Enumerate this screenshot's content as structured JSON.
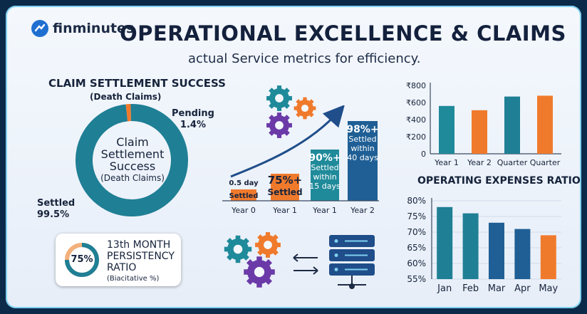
{
  "brand": {
    "name": "finminutes"
  },
  "header": {
    "title": "OPERATIONAL EXCELLENCE & CLAIMS",
    "subtitle": "actual Service metrics for efficiency."
  },
  "claims_section": {
    "title": "CLAIM SETTLEMENT SUCCESS",
    "subtitle": "(Death Claims)",
    "center_line1": "Claim",
    "center_line2": "Settlement",
    "center_line3": "Success",
    "center_line4": "(Death Claims)"
  },
  "persistency": {
    "value_label": "75%",
    "line1": "13th MONTH",
    "line2": "PERSISTENCY",
    "line3": "RATIO",
    "line4": "(Biacitative %)"
  },
  "colors": {
    "teal": "#1f8a9a",
    "navy": "#1f4e8a",
    "orange": "#f07a2c",
    "bg": "#eef3fa"
  },
  "icons": [
    "gear-icon",
    "server-icon",
    "arrow-icon"
  ],
  "chart_data": [
    {
      "type": "pie",
      "title": "CLAIM SETTLEMENT SUCCESS",
      "slices": [
        {
          "name": "Settled",
          "value": 99.5,
          "label": "99.5%"
        },
        {
          "name": "Pending",
          "value": 1.4,
          "label": "1.4%"
        }
      ]
    },
    {
      "type": "bar",
      "categories": [
        "Year 0",
        "Year 1",
        "Year 1",
        "Year 2"
      ],
      "values": [
        0.5,
        75,
        90,
        98
      ],
      "labels": [
        [
          "0.5 day",
          "Settled"
        ],
        [
          "75%+",
          "Settled"
        ],
        [
          "90%+",
          "Settled",
          "within",
          "15 days"
        ],
        [
          "98%+",
          "Settled",
          "within",
          "40 days"
        ]
      ]
    },
    {
      "type": "bar",
      "categories": [
        "Year 1",
        "Year 2",
        "Quarter",
        "Quarter"
      ],
      "values": [
        560,
        510,
        670,
        680
      ],
      "yticks": [
        "₹800",
        "₹600",
        "₹400",
        "₹200",
        "0"
      ],
      "ylim": [
        0,
        800
      ]
    },
    {
      "type": "bar",
      "title": "OPERATING EXPENSES RATIO",
      "categories": [
        "Jan",
        "Feb",
        "Mar",
        "Apr",
        "May"
      ],
      "values": [
        78,
        76,
        73,
        71,
        69
      ],
      "yticks": [
        "80%",
        "75%",
        "70%",
        "65%",
        "60%",
        "55%"
      ],
      "ylim": [
        55,
        80
      ]
    },
    {
      "type": "pie",
      "title": "13th MONTH PERSISTENCY RATIO",
      "slices": [
        {
          "name": "Persistency",
          "value": 75,
          "label": "75%"
        }
      ]
    }
  ]
}
